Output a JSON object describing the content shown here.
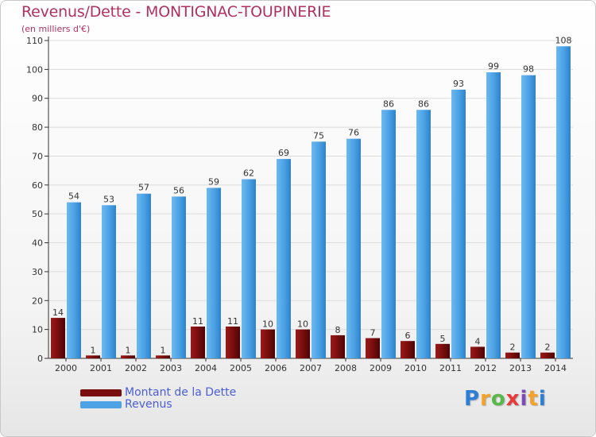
{
  "title": "Revenus/Dette - MONTIGNAC-TOUPINERIE",
  "subtitle": "(en milliers d'€)",
  "brand": {
    "letters": [
      "P",
      "r",
      "o",
      "x",
      "i",
      "t",
      "i"
    ],
    "colors": [
      "#2d7fd6",
      "#f2a12a",
      "#58b84a",
      "#e83a3a",
      "#7a4ab8",
      "#f2a12a",
      "#2d7fd6"
    ]
  },
  "colors": {
    "dette": "#7a0d0d",
    "revenus": "#4da3e6",
    "grid": "#dcdcdc",
    "axis": "#333333",
    "tick_text": "#333333"
  },
  "legend": [
    {
      "label": "Montant de la Dette",
      "color": "#7a0d0d"
    },
    {
      "label": "Revenus",
      "color": "#4da3e6"
    }
  ],
  "chart_data": {
    "type": "bar",
    "categories": [
      "2000",
      "2001",
      "2002",
      "2003",
      "2004",
      "2005",
      "2006",
      "2007",
      "2008",
      "2009",
      "2010",
      "2011",
      "2012",
      "2013",
      "2014"
    ],
    "series": [
      {
        "name": "Montant de la Dette",
        "values": [
          14,
          1,
          1,
          1,
          11,
          11,
          10,
          10,
          8,
          7,
          6,
          5,
          4,
          2,
          2
        ]
      },
      {
        "name": "Revenus",
        "values": [
          54,
          53,
          57,
          56,
          59,
          62,
          69,
          75,
          76,
          86,
          86,
          93,
          99,
          98,
          108
        ]
      }
    ],
    "ylim": [
      0,
      110
    ],
    "yticks": [
      0,
      10,
      20,
      30,
      40,
      50,
      60,
      70,
      80,
      90,
      100,
      110
    ],
    "grid": true,
    "legend_position": "bottom-left"
  }
}
